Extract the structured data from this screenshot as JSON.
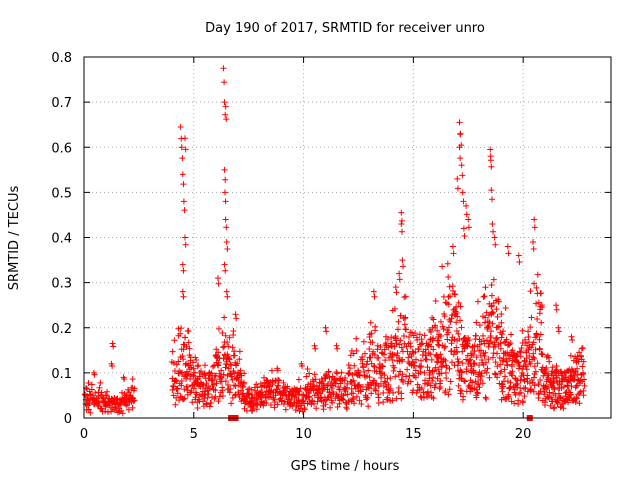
{
  "chart_data": {
    "type": "scatter",
    "title": "Day 190 of 2017, SRMTID for receiver unro",
    "xlabel": "GPS time / hours",
    "ylabel": "SRMTID / TECUs",
    "xlim": [
      0,
      24
    ],
    "ylim": [
      0,
      0.8
    ],
    "xticks": [
      0,
      5,
      10,
      15,
      20
    ],
    "xtick_labels": [
      "0",
      "5",
      "10",
      "15",
      "20"
    ],
    "yticks": [
      0,
      0.1,
      0.2,
      0.3,
      0.4,
      0.5,
      0.6,
      0.7,
      0.8
    ],
    "ytick_labels": [
      "0",
      "0.1",
      "0.2",
      "0.3",
      "0.4",
      "0.5",
      "0.6",
      "0.7",
      "0.8"
    ],
    "grid": true,
    "marker": "+",
    "marker_color": "#ff0000",
    "series": [
      {
        "name": "SRMTID",
        "segments": [
          {
            "x0": 0.0,
            "x1": 2.3,
            "step": 0.025,
            "base": 0.03,
            "amp": 0.045,
            "spikes": [
              [
                1.3,
                0.165
              ],
              [
                0.45,
                0.1
              ],
              [
                1.25,
                0.12
              ],
              [
                1.8,
                0.09
              ]
            ]
          },
          {
            "x0": 4.0,
            "x1": 7.3,
            "step": 0.018,
            "base": 0.07,
            "amp": 0.13,
            "spikes": [
              [
                4.4,
                0.645
              ],
              [
                4.6,
                0.62
              ],
              [
                4.45,
                0.6
              ],
              [
                4.5,
                0.54
              ],
              [
                4.55,
                0.48
              ],
              [
                4.6,
                0.4
              ],
              [
                4.5,
                0.34
              ],
              [
                4.5,
                0.28
              ],
              [
                6.35,
                0.775
              ],
              [
                6.4,
                0.7
              ],
              [
                6.45,
                0.69
              ],
              [
                6.4,
                0.55
              ],
              [
                6.42,
                0.5
              ],
              [
                6.45,
                0.44
              ],
              [
                6.5,
                0.39
              ],
              [
                6.4,
                0.34
              ],
              [
                6.5,
                0.28
              ],
              [
                6.1,
                0.31
              ],
              [
                6.9,
                0.23
              ]
            ]
          },
          {
            "x0": 7.3,
            "x1": 11.0,
            "step": 0.02,
            "base": 0.045,
            "amp": 0.05,
            "spikes": [
              [
                8.8,
                0.11
              ],
              [
                10.5,
                0.16
              ],
              [
                9.9,
                0.12
              ]
            ]
          },
          {
            "x0": 11.0,
            "x1": 13.0,
            "step": 0.02,
            "base": 0.065,
            "amp": 0.09,
            "spikes": [
              [
                11.0,
                0.2
              ],
              [
                11.5,
                0.16
              ]
            ]
          },
          {
            "x0": 13.0,
            "x1": 15.5,
            "step": 0.018,
            "base": 0.11,
            "amp": 0.15,
            "spikes": [
              [
                14.45,
                0.455
              ],
              [
                14.45,
                0.43
              ],
              [
                14.5,
                0.35
              ],
              [
                14.35,
                0.32
              ],
              [
                13.2,
                0.28
              ],
              [
                14.2,
                0.29
              ]
            ]
          },
          {
            "x0": 15.5,
            "x1": 19.0,
            "step": 0.015,
            "base": 0.12,
            "amp": 0.2,
            "spikes": [
              [
                17.1,
                0.655
              ],
              [
                17.15,
                0.63
              ],
              [
                17.1,
                0.6
              ],
              [
                17.2,
                0.56
              ],
              [
                17.0,
                0.53
              ],
              [
                17.25,
                0.5
              ],
              [
                17.4,
                0.47
              ],
              [
                17.5,
                0.44
              ],
              [
                17.3,
                0.42
              ],
              [
                16.8,
                0.38
              ],
              [
                18.5,
                0.595
              ],
              [
                18.52,
                0.58
              ],
              [
                18.55,
                0.505
              ],
              [
                18.6,
                0.43
              ],
              [
                18.7,
                0.4
              ]
            ]
          },
          {
            "x0": 19.0,
            "x1": 20.9,
            "step": 0.015,
            "base": 0.1,
            "amp": 0.22,
            "spikes": [
              [
                20.5,
                0.44
              ],
              [
                20.45,
                0.39
              ],
              [
                19.3,
                0.38
              ],
              [
                19.8,
                0.36
              ]
            ]
          },
          {
            "x0": 20.9,
            "x1": 22.8,
            "step": 0.015,
            "base": 0.07,
            "amp": 0.08,
            "spikes": [
              [
                21.5,
                0.25
              ],
              [
                21.6,
                0.2
              ],
              [
                22.2,
                0.18
              ]
            ]
          }
        ],
        "zero_markers": [
          6.7,
          6.9,
          20.3
        ]
      }
    ]
  }
}
